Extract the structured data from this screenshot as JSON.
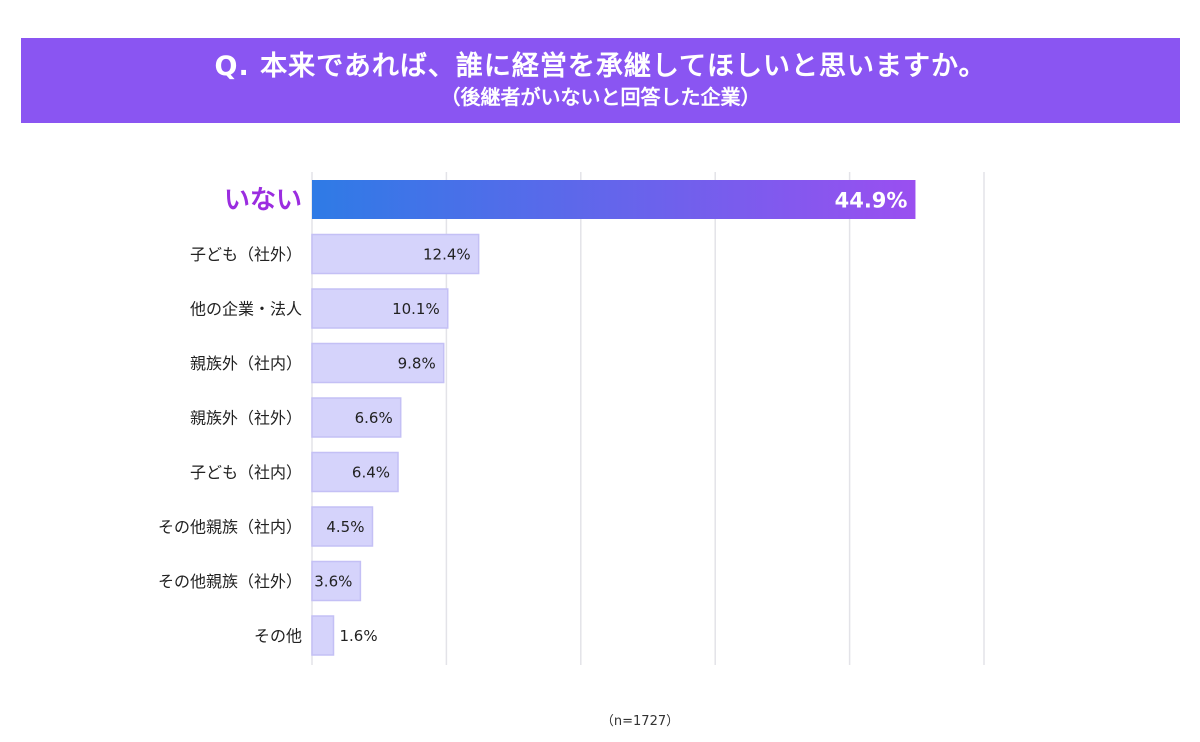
{
  "header": {
    "title": "Q. 本来であれば、誰に経営を承継してほしいと思いますか。",
    "subtitle": "（後継者がいないと回答した企業）"
  },
  "footnote": "（n=1727）",
  "colors": {
    "banner": "#8a55f2",
    "highlight_bar_start": "#2e7be6",
    "highlight_bar_end": "#9a4ff0",
    "highlight_label": "#9b2de0",
    "normal_bar_fill": "#d5d3fb",
    "normal_bar_stroke": "#c4c0f5",
    "grid": "#e3e3e8"
  },
  "chart_data": {
    "type": "bar",
    "orientation": "horizontal",
    "categories": [
      "いない",
      "子ども（社外）",
      "他の企業・法人",
      "親族外（社内）",
      "親族外（社外）",
      "子ども（社内）",
      "その他親族（社内）",
      "その他親族（社外）",
      "その他"
    ],
    "values": [
      44.9,
      12.4,
      10.1,
      9.8,
      6.6,
      6.4,
      4.5,
      3.6,
      1.6
    ],
    "value_labels": [
      "44.9%",
      "12.4%",
      "10.1%",
      "9.8%",
      "6.6%",
      "6.4%",
      "4.5%",
      "3.6%",
      "1.6%"
    ],
    "highlight_index": 0,
    "xlim": [
      0,
      50
    ],
    "grid": true,
    "unit": "%"
  }
}
